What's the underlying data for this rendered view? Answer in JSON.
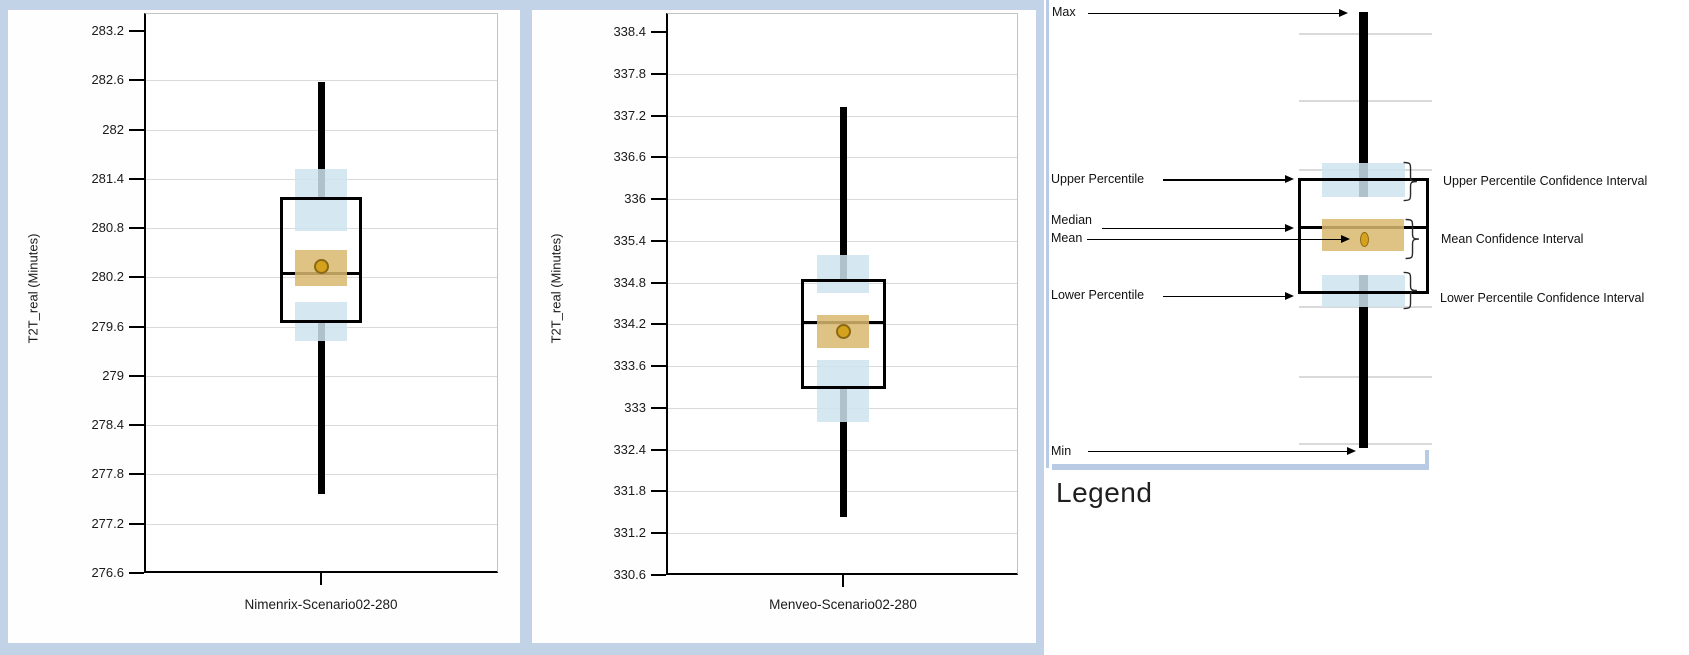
{
  "chart_data": [
    {
      "type": "box",
      "category": "Nimenrix-Scenario02-280",
      "ylabel": "T2T_real (Minutes)",
      "yticks": [
        283.2,
        282.6,
        282,
        281.4,
        280.8,
        280.2,
        279.6,
        279,
        278.4,
        277.8,
        277.2,
        276.6
      ],
      "ylim": [
        276.6,
        283.2
      ],
      "grid": true,
      "stats": {
        "max": 282.58,
        "upper_percentile": 281.18,
        "upper_percentile_ci": [
          280.76,
          281.52
        ],
        "median": 280.25,
        "mean": 280.33,
        "mean_ci": [
          280.09,
          280.53
        ],
        "lower_percentile": 279.64,
        "lower_percentile_ci": [
          279.42,
          279.9
        ],
        "min": 277.56
      }
    },
    {
      "type": "box",
      "category": "Menveo-Scenario02-280",
      "ylabel": "T2T_real (Minutes)",
      "yticks": [
        338.4,
        337.8,
        337.2,
        336.6,
        336,
        335.4,
        334.8,
        334.2,
        333.6,
        333,
        332.4,
        331.8,
        331.2,
        330.6
      ],
      "ylim": [
        330.6,
        338.4
      ],
      "grid": true,
      "stats": {
        "max": 337.32,
        "upper_percentile": 334.85,
        "upper_percentile_ci": [
          334.65,
          335.19
        ],
        "median": 334.22,
        "mean": 334.1,
        "mean_ci": [
          333.86,
          334.33
        ],
        "lower_percentile": 333.27,
        "lower_percentile_ci": [
          332.8,
          333.69
        ],
        "min": 331.43
      }
    }
  ],
  "legend_panel": {
    "title": "Legend",
    "left_labels": {
      "max": "Max",
      "upper_percentile": "Upper Percentile",
      "median": "Median",
      "mean": "Mean",
      "lower_percentile": "Lower Percentile",
      "min": "Min"
    },
    "right_labels": {
      "upper": "Upper Percentile Confidence Interval",
      "mean": "Mean Confidence Interval",
      "lower": "Lower Percentile Confidence Interval"
    }
  },
  "colors": {
    "panel_frame": "#C2D3E8",
    "ci_blue": "#CEE4EF",
    "mean_band": "#D9B96E",
    "mean_marker": "#D4A21C",
    "mean_marker_border": "#8B6914",
    "gridline": "#DADADA",
    "box_border": "#000000"
  }
}
